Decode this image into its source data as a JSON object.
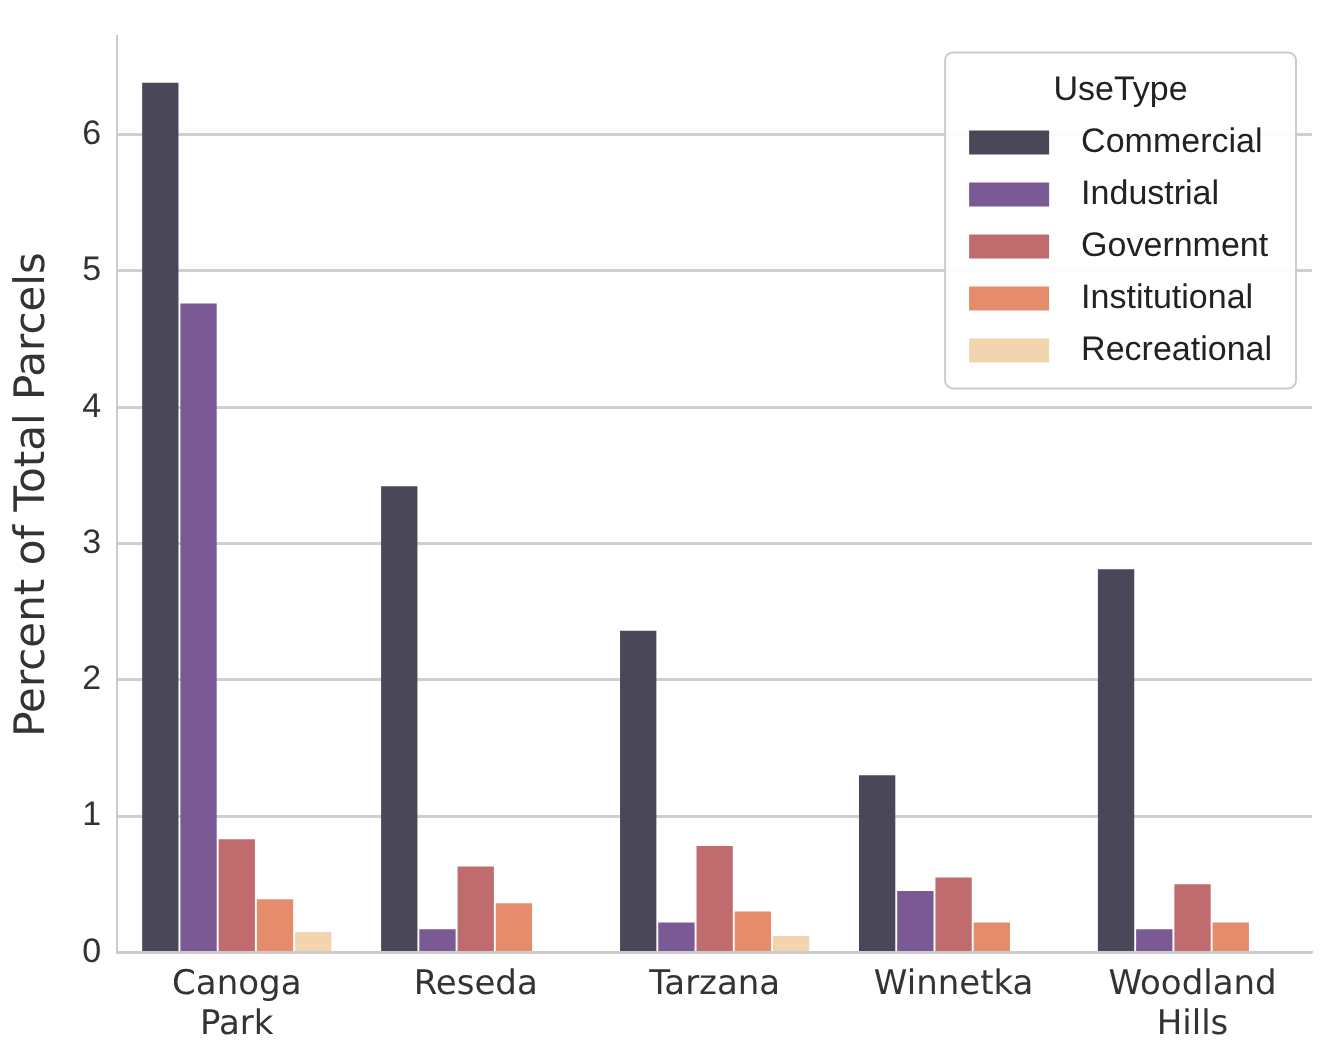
{
  "chart_data": {
    "type": "bar",
    "ylabel": "Percent of Total Parcels",
    "legend_title": "UseType",
    "legend": "top right",
    "grid": "y",
    "categories": [
      "Canoga Park",
      "Reseda",
      "Tarzana",
      "Winnetka",
      "Woodland Hills"
    ],
    "ylim": [
      0,
      6.72
    ],
    "yticks": [
      0,
      1,
      2,
      3,
      4,
      5,
      6
    ],
    "series": [
      {
        "name": "Commercial",
        "color": "#4a4858",
        "values": [
          6.38,
          3.42,
          2.36,
          1.3,
          2.81
        ]
      },
      {
        "name": "Industrial",
        "color": "#7b5994",
        "values": [
          4.76,
          0.17,
          0.22,
          0.45,
          0.17
        ]
      },
      {
        "name": "Government",
        "color": "#c06c6e",
        "values": [
          0.83,
          0.63,
          0.78,
          0.55,
          0.5
        ]
      },
      {
        "name": "Institutional",
        "color": "#e48c6c",
        "values": [
          0.39,
          0.36,
          0.3,
          0.22,
          0.22
        ]
      },
      {
        "name": "Recreational",
        "color": "#f2d5ae",
        "values": [
          0.15,
          null,
          0.12,
          null,
          null
        ]
      }
    ]
  }
}
